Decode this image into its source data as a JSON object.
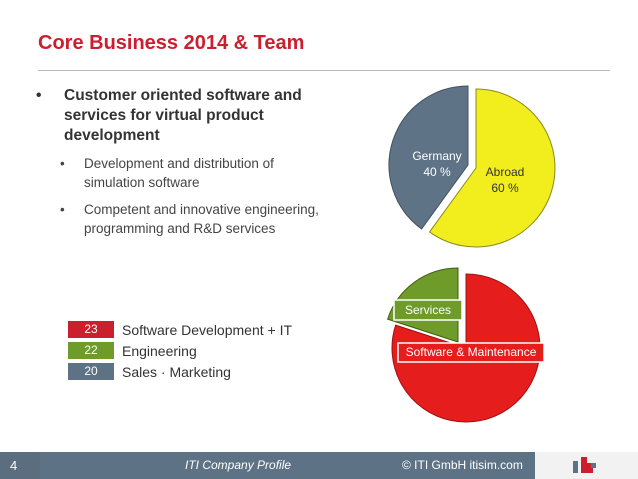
{
  "slide": {
    "title": "Core Business 2014 & Team",
    "bullet_main": "Customer oriented software and services for virtual product development",
    "bullet_sub_1": "Development and distribution of simulation software",
    "bullet_sub_2": "Competent and innovative engineering, programming and R&D services",
    "bullet_glyph": "•"
  },
  "team_legend": [
    {
      "count": "23",
      "label": "Software Development + IT",
      "color": "#cc1f2e"
    },
    {
      "count": "22",
      "label": "Engineering",
      "color": "#6e9b2a"
    },
    {
      "count": "20",
      "label": "Sales · Marketing",
      "color": "#5d7285"
    }
  ],
  "chart_data": [
    {
      "type": "pie",
      "slices": [
        {
          "label": "Germany",
          "value_label": "40 %",
          "value": 40,
          "color": "#5f7387"
        },
        {
          "label": "Abroad",
          "value_label": "60 %",
          "value": 60,
          "color": "#f2ee1e"
        }
      ]
    },
    {
      "type": "pie",
      "slices": [
        {
          "label": "Services",
          "value": 20,
          "color": "#6e9b2a"
        },
        {
          "label": "Software & Maintenance",
          "value": 80,
          "color": "#e61d1d"
        }
      ]
    }
  ],
  "footer": {
    "page_number": "4",
    "profile": "ITI Company Profile",
    "copyright": "© ITI GmbH  itisim.com"
  },
  "logo": {
    "icon": "iti-logo-icon",
    "colors": [
      "#cc1f2e",
      "#5d7285"
    ]
  }
}
